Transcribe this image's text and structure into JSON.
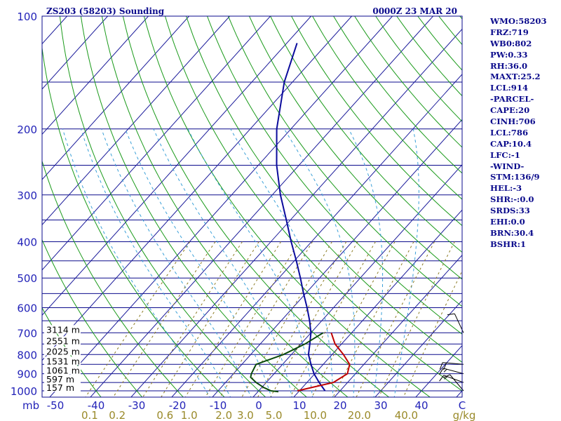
{
  "header": {
    "station": "ZS203 (58203) Sounding",
    "time": "0000Z 23 MAR 20"
  },
  "indices": [
    "WMO:58203",
    "FRZ:719",
    "WB0:802",
    "PW:0.33",
    "RH:36.0",
    "MAXT:25.2",
    "LCL:914",
    "-PARCEL-",
    "CAPE:20",
    "CINH:706",
    "LCL:786",
    "CAP:10.4",
    "LFC:-1",
    "-WIND-",
    "STM:136/9",
    "HEL:-3",
    "SHR:-:0.0",
    "SRDS:33",
    "EHI:0.0",
    "BRN:30.4",
    "BSHR:1"
  ],
  "colors": {
    "frame": "#0b0b8c",
    "isobar": "#0b0b8c",
    "isotherm": "#1a1a9a",
    "dry_adiabat": "#1a9a1a",
    "moist_adiabat": "#3aa0d8",
    "mixing_ratio": "#8a7a20",
    "temperature": "#0b0b9c",
    "dewpoint": "#0a4a0a",
    "parcel": "#c00000",
    "wind_barb": "#000000"
  },
  "chart_data": {
    "type": "skew-t log-p sounding",
    "pressure_ticks": [
      100,
      200,
      300,
      400,
      500,
      600,
      700,
      800,
      900,
      1000
    ],
    "unit_label": "mb",
    "temperature_ticks": [
      "-50",
      "-40",
      "-30",
      "-20",
      "-10",
      "0",
      "10",
      "20",
      "30",
      "40",
      "C"
    ],
    "mixing_ratio_ticks": [
      "0.1",
      "0.2",
      "0.6",
      "1.0",
      "2.0",
      "3.0",
      "5.0",
      "10.0",
      "20.0",
      "40.0",
      "g/kg"
    ],
    "mixing_ratio_values": [
      0.1,
      0.2,
      0.6,
      1.0,
      2.0,
      3.0,
      5.0,
      10.0,
      20.0,
      40.0
    ],
    "height_labels": [
      {
        "text": "3114 m",
        "p": 700
      },
      {
        "text": "2551 m",
        "p": 750
      },
      {
        "text": "2025 m",
        "p": 800
      },
      {
        "text": "1531 m",
        "p": 850
      },
      {
        "text": "1061 m",
        "p": 900
      },
      {
        "text": "597 m",
        "p": 950
      },
      {
        "text": "157 m",
        "p": 1000
      }
    ],
    "temperature_profile": [
      {
        "p": 1000,
        "t": 16.3
      },
      {
        "p": 950,
        "t": 13.0
      },
      {
        "p": 900,
        "t": 9.8
      },
      {
        "p": 850,
        "t": 7.0
      },
      {
        "p": 800,
        "t": 4.2
      },
      {
        "p": 750,
        "t": 2.2
      },
      {
        "p": 700,
        "t": 0.0
      },
      {
        "p": 650,
        "t": -3.0
      },
      {
        "p": 600,
        "t": -6.5
      },
      {
        "p": 550,
        "t": -10.5
      },
      {
        "p": 500,
        "t": -14.7
      },
      {
        "p": 450,
        "t": -19.5
      },
      {
        "p": 400,
        "t": -25.0
      },
      {
        "p": 350,
        "t": -31.0
      },
      {
        "p": 300,
        "t": -38.0
      },
      {
        "p": 250,
        "t": -45.5
      },
      {
        "p": 200,
        "t": -53.5
      },
      {
        "p": 150,
        "t": -62.0
      },
      {
        "p": 118,
        "t": -67.5
      }
    ],
    "dewpoint_profile": [
      {
        "p": 1005,
        "t": 5.0
      },
      {
        "p": 1000,
        "t": 3.0
      },
      {
        "p": 980,
        "t": 0.5
      },
      {
        "p": 950,
        "t": -2.5
      },
      {
        "p": 920,
        "t": -5.0
      },
      {
        "p": 900,
        "t": -5.6
      },
      {
        "p": 850,
        "t": -6.5
      },
      {
        "p": 800,
        "t": -2.0
      },
      {
        "p": 750,
        "t": 1.0
      },
      {
        "p": 700,
        "t": 3.0
      }
    ],
    "parcel_profile": [
      {
        "p": 1000,
        "t": 9.5
      },
      {
        "p": 950,
        "t": 16.5
      },
      {
        "p": 900,
        "t": 18.0
      },
      {
        "p": 850,
        "t": 16.5
      },
      {
        "p": 800,
        "t": 12.8
      },
      {
        "p": 750,
        "t": 8.4
      },
      {
        "p": 700,
        "t": 5.0
      }
    ],
    "wind_barbs": [
      {
        "p": 700,
        "dir_deg": 335,
        "speed_kt": 10
      },
      {
        "p": 850,
        "dir_deg": 275,
        "speed_kt": 20
      },
      {
        "p": 900,
        "dir_deg": 285,
        "speed_kt": 15
      },
      {
        "p": 950,
        "dir_deg": 290,
        "speed_kt": 15
      },
      {
        "p": 1000,
        "dir_deg": 320,
        "speed_kt": 10
      }
    ],
    "grid": true
  }
}
